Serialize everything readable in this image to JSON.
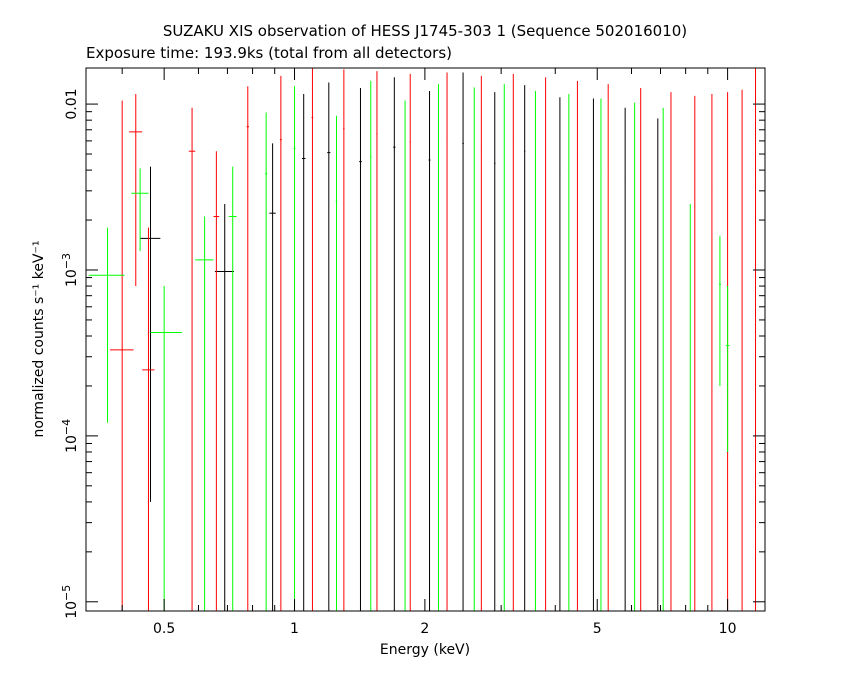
{
  "chart_data": {
    "type": "scatter",
    "title": "SUZAKU XIS observation of HESS J1745-303 1 (Sequence 502016010)",
    "subtitle": "Exposure time: 193.9ks (total from all detectors)",
    "xlabel": "Energy (keV)",
    "ylabel": "normalized counts s⁻¹ keV⁻¹",
    "x_scale": "log",
    "y_scale": "log",
    "xlim": [
      0.33,
      12.2
    ],
    "ylim": [
      8.8e-06,
      0.0165
    ],
    "x_ticks": [
      {
        "value": 0.5,
        "label": "0.5"
      },
      {
        "value": 1,
        "label": "1"
      },
      {
        "value": 2,
        "label": "2"
      },
      {
        "value": 5,
        "label": "5"
      },
      {
        "value": 10,
        "label": "10"
      }
    ],
    "y_ticks": [
      {
        "value": 1e-05,
        "base": "10",
        "exp": "−5"
      },
      {
        "value": 0.0001,
        "base": "10",
        "exp": "−4"
      },
      {
        "value": 0.001,
        "base": "10",
        "exp": "−3"
      },
      {
        "value": 0.01,
        "label": "0.01"
      }
    ],
    "grid": false,
    "series": [
      {
        "color": "#000000",
        "points": [
          {
            "x": 0.465,
            "xlo": 0.44,
            "xhi": 0.49,
            "y": 0.00155,
            "ylo": 4e-05,
            "yhi": 0.0042
          },
          {
            "x": 0.69,
            "xlo": 0.655,
            "xhi": 0.725,
            "y": 0.00098,
            "ylo": 8.8e-06,
            "yhi": 0.0025
          },
          {
            "x": 0.89,
            "xlo": 0.875,
            "xhi": 0.905,
            "y": 0.0022,
            "ylo": 8.8e-06,
            "yhi": 0.0058
          },
          {
            "x": 1.05,
            "xlo": 1.04,
            "xhi": 1.06,
            "y": 0.0047,
            "ylo": 8.8e-06,
            "yhi": 0.0115
          },
          {
            "x": 1.2,
            "xlo": 1.19,
            "xhi": 1.21,
            "y": 0.0051,
            "ylo": 8.8e-06,
            "yhi": 0.0135
          },
          {
            "x": 1.42,
            "xlo": 1.41,
            "xhi": 1.43,
            "y": 0.0045,
            "ylo": 8.8e-06,
            "yhi": 0.0125
          },
          {
            "x": 1.7,
            "xlo": 1.69,
            "xhi": 1.71,
            "y": 0.0055,
            "ylo": 8.8e-06,
            "yhi": 0.0145
          },
          {
            "x": 2.05,
            "xlo": 2.04,
            "xhi": 2.06,
            "y": 0.0046,
            "ylo": 8.8e-06,
            "yhi": 0.012
          },
          {
            "x": 2.45,
            "xlo": 2.44,
            "xhi": 2.46,
            "y": 0.0058,
            "ylo": 8.8e-06,
            "yhi": 0.0155
          },
          {
            "x": 2.9,
            "xlo": 2.89,
            "xhi": 2.91,
            "y": 0.0044,
            "ylo": 8.8e-06,
            "yhi": 0.0118
          },
          {
            "x": 3.4,
            "xlo": 3.39,
            "xhi": 3.41,
            "y": 0.0052,
            "ylo": 8.8e-06,
            "yhi": 0.013
          },
          {
            "x": 4.1,
            "xlo": 4.09,
            "xhi": 4.11,
            "y": 0.0038,
            "ylo": 8.8e-06,
            "yhi": 0.011
          },
          {
            "x": 4.9,
            "xlo": 4.89,
            "xhi": 4.91,
            "y": 0.0042,
            "ylo": 8.8e-06,
            "yhi": 0.0108
          },
          {
            "x": 5.8,
            "xlo": 5.79,
            "xhi": 5.81,
            "y": 0.0034,
            "ylo": 8.8e-06,
            "yhi": 0.0095
          },
          {
            "x": 6.9,
            "xlo": 6.89,
            "xhi": 6.91,
            "y": 0.0029,
            "ylo": 8.8e-06,
            "yhi": 0.0082
          }
        ]
      },
      {
        "color": "#ff0000",
        "points": [
          {
            "x": 0.4,
            "xlo": 0.375,
            "xhi": 0.425,
            "y": 0.00033,
            "ylo": 8.8e-06,
            "yhi": 0.0105
          },
          {
            "x": 0.43,
            "xlo": 0.415,
            "xhi": 0.445,
            "y": 0.0068,
            "ylo": 0.0008,
            "yhi": 0.0115
          },
          {
            "x": 0.46,
            "xlo": 0.445,
            "xhi": 0.475,
            "y": 0.00025,
            "ylo": 8.8e-06,
            "yhi": 0.0018
          },
          {
            "x": 0.58,
            "xlo": 0.57,
            "xhi": 0.59,
            "y": 0.0052,
            "ylo": 8.8e-06,
            "yhi": 0.0095
          },
          {
            "x": 0.66,
            "xlo": 0.65,
            "xhi": 0.67,
            "y": 0.0021,
            "ylo": 8.8e-06,
            "yhi": 0.0052
          },
          {
            "x": 0.78,
            "xlo": 0.775,
            "xhi": 0.785,
            "y": 0.0073,
            "ylo": 8.8e-06,
            "yhi": 0.0128
          },
          {
            "x": 0.93,
            "xlo": 0.925,
            "xhi": 0.935,
            "y": 0.0061,
            "ylo": 8.8e-06,
            "yhi": 0.0148
          },
          {
            "x": 1.1,
            "xlo": 1.095,
            "xhi": 1.105,
            "y": 0.0083,
            "ylo": 8.8e-06,
            "yhi": 0.0165
          },
          {
            "x": 1.3,
            "xlo": 1.295,
            "xhi": 1.305,
            "y": 0.0071,
            "ylo": 8.8e-06,
            "yhi": 0.0162
          },
          {
            "x": 1.55,
            "xlo": 1.545,
            "xhi": 1.555,
            "y": 0.0066,
            "ylo": 8.8e-06,
            "yhi": 0.0158
          },
          {
            "x": 1.85,
            "xlo": 1.845,
            "xhi": 1.855,
            "y": 0.0059,
            "ylo": 8.8e-06,
            "yhi": 0.0152
          },
          {
            "x": 2.25,
            "xlo": 2.245,
            "xhi": 2.255,
            "y": 0.0062,
            "ylo": 8.8e-06,
            "yhi": 0.0155
          },
          {
            "x": 2.7,
            "xlo": 2.695,
            "xhi": 2.705,
            "y": 0.0057,
            "ylo": 8.8e-06,
            "yhi": 0.0148
          },
          {
            "x": 3.2,
            "xlo": 3.195,
            "xhi": 3.205,
            "y": 0.0061,
            "ylo": 8.8e-06,
            "yhi": 0.0152
          },
          {
            "x": 3.8,
            "xlo": 3.795,
            "xhi": 3.805,
            "y": 0.0053,
            "ylo": 8.8e-06,
            "yhi": 0.0145
          },
          {
            "x": 4.5,
            "xlo": 4.495,
            "xhi": 4.505,
            "y": 0.0049,
            "ylo": 8.8e-06,
            "yhi": 0.0138
          },
          {
            "x": 5.3,
            "xlo": 5.295,
            "xhi": 5.305,
            "y": 0.0044,
            "ylo": 8.8e-06,
            "yhi": 0.0132
          },
          {
            "x": 6.3,
            "xlo": 6.295,
            "xhi": 6.305,
            "y": 0.004,
            "ylo": 8.8e-06,
            "yhi": 0.0125
          },
          {
            "x": 7.4,
            "xlo": 7.395,
            "xhi": 7.405,
            "y": 0.0036,
            "ylo": 8.8e-06,
            "yhi": 0.0118
          },
          {
            "x": 8.4,
            "xlo": 8.39,
            "xhi": 8.41,
            "y": 0.0033,
            "ylo": 8.8e-06,
            "yhi": 0.0112
          },
          {
            "x": 9.2,
            "xlo": 9.19,
            "xhi": 9.21,
            "y": 0.0031,
            "ylo": 8.8e-06,
            "yhi": 0.0115
          },
          {
            "x": 10.0,
            "xlo": 9.99,
            "xhi": 10.01,
            "y": 0.0029,
            "ylo": 8.8e-06,
            "yhi": 0.0118
          },
          {
            "x": 10.8,
            "xlo": 10.79,
            "xhi": 10.81,
            "y": 0.0027,
            "ylo": 8.8e-06,
            "yhi": 0.0122
          },
          {
            "x": 11.6,
            "xlo": 11.59,
            "xhi": 11.61,
            "y": 0.0026,
            "ylo": 8.8e-06,
            "yhi": 0.0165
          }
        ]
      },
      {
        "color": "#00ff00",
        "points": [
          {
            "x": 0.37,
            "xlo": 0.335,
            "xhi": 0.405,
            "y": 0.00093,
            "ylo": 0.00012,
            "yhi": 0.0018
          },
          {
            "x": 0.44,
            "xlo": 0.42,
            "xhi": 0.46,
            "y": 0.0029,
            "ylo": 0.0013,
            "yhi": 0.0041
          },
          {
            "x": 0.5,
            "xlo": 0.465,
            "xhi": 0.55,
            "y": 0.00042,
            "ylo": 8.8e-06,
            "yhi": 0.0008
          },
          {
            "x": 0.62,
            "xlo": 0.59,
            "xhi": 0.65,
            "y": 0.00115,
            "ylo": 8.8e-06,
            "yhi": 0.0021
          },
          {
            "x": 0.72,
            "xlo": 0.705,
            "xhi": 0.735,
            "y": 0.0021,
            "ylo": 8.8e-06,
            "yhi": 0.0042
          },
          {
            "x": 0.86,
            "xlo": 0.855,
            "xhi": 0.865,
            "y": 0.0038,
            "ylo": 8.8e-06,
            "yhi": 0.0089
          },
          {
            "x": 1.0,
            "xlo": 0.995,
            "xhi": 1.005,
            "y": 0.0054,
            "ylo": 8.8e-06,
            "yhi": 0.0128
          },
          {
            "x": 1.25,
            "xlo": 1.245,
            "xhi": 1.255,
            "y": 0.0026,
            "ylo": 8.8e-06,
            "yhi": 0.0085
          },
          {
            "x": 1.5,
            "xlo": 1.495,
            "xhi": 1.505,
            "y": 0.0048,
            "ylo": 8.8e-06,
            "yhi": 0.0138
          },
          {
            "x": 1.8,
            "xlo": 1.795,
            "xhi": 1.805,
            "y": 0.0033,
            "ylo": 8.8e-06,
            "yhi": 0.0105
          },
          {
            "x": 2.15,
            "xlo": 2.145,
            "xhi": 2.155,
            "y": 0.0051,
            "ylo": 8.8e-06,
            "yhi": 0.0132
          },
          {
            "x": 2.6,
            "xlo": 2.595,
            "xhi": 2.605,
            "y": 0.0045,
            "ylo": 8.8e-06,
            "yhi": 0.0126
          },
          {
            "x": 3.05,
            "xlo": 3.045,
            "xhi": 3.055,
            "y": 0.0049,
            "ylo": 8.8e-06,
            "yhi": 0.0132
          },
          {
            "x": 3.6,
            "xlo": 3.595,
            "xhi": 3.605,
            "y": 0.0043,
            "ylo": 8.8e-06,
            "yhi": 0.012
          },
          {
            "x": 4.3,
            "xlo": 4.295,
            "xhi": 4.305,
            "y": 0.0041,
            "ylo": 8.8e-06,
            "yhi": 0.0115
          },
          {
            "x": 5.1,
            "xlo": 5.095,
            "xhi": 5.105,
            "y": 0.0039,
            "ylo": 8.8e-06,
            "yhi": 0.0108
          },
          {
            "x": 6.1,
            "xlo": 6.095,
            "xhi": 6.105,
            "y": 0.0034,
            "ylo": 8.8e-06,
            "yhi": 0.0102
          },
          {
            "x": 7.1,
            "xlo": 7.095,
            "xhi": 7.105,
            "y": 0.0031,
            "ylo": 8.8e-06,
            "yhi": 0.0095
          },
          {
            "x": 8.2,
            "xlo": 8.19,
            "xhi": 8.21,
            "y": 0.00088,
            "ylo": 8.8e-06,
            "yhi": 0.0025
          },
          {
            "x": 9.6,
            "xlo": 9.55,
            "xhi": 9.65,
            "y": 0.00082,
            "ylo": 0.0002,
            "yhi": 0.0016
          },
          {
            "x": 10.0,
            "xlo": 9.9,
            "xhi": 10.1,
            "y": 0.00035,
            "ylo": 8e-05,
            "yhi": 0.0008
          }
        ]
      }
    ]
  }
}
